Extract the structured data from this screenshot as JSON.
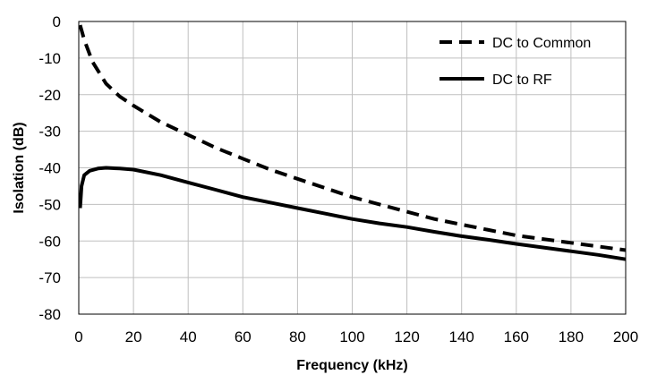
{
  "chart_data": {
    "type": "line",
    "title": "",
    "xlabel": "Frequency (kHz)",
    "ylabel": "Isolation (dB)",
    "xlim": [
      0,
      200
    ],
    "ylim": [
      -80,
      0
    ],
    "x_ticks": [
      0,
      20,
      40,
      60,
      80,
      100,
      120,
      140,
      160,
      180,
      200
    ],
    "y_ticks": [
      0,
      -10,
      -20,
      -30,
      -40,
      -50,
      -60,
      -70,
      -80
    ],
    "grid": true,
    "legend_position": "top-right",
    "series": [
      {
        "name": "DC to Common",
        "style": "dashed",
        "color": "#000000",
        "points": [
          [
            0.5,
            -1
          ],
          [
            2,
            -5
          ],
          [
            5,
            -11
          ],
          [
            10,
            -17
          ],
          [
            15,
            -20.5
          ],
          [
            20,
            -23
          ],
          [
            30,
            -27.5
          ],
          [
            40,
            -31
          ],
          [
            50,
            -34.5
          ],
          [
            60,
            -37.5
          ],
          [
            70,
            -40.5
          ],
          [
            80,
            -43
          ],
          [
            90,
            -45.5
          ],
          [
            100,
            -48
          ],
          [
            110,
            -50
          ],
          [
            120,
            -52
          ],
          [
            130,
            -54
          ],
          [
            140,
            -55.5
          ],
          [
            150,
            -57
          ],
          [
            160,
            -58.5
          ],
          [
            170,
            -59.5
          ],
          [
            180,
            -60.5
          ],
          [
            190,
            -61.5
          ],
          [
            200,
            -62.5
          ]
        ]
      },
      {
        "name": "DC to RF",
        "style": "solid",
        "color": "#000000",
        "points": [
          [
            0.5,
            -51
          ],
          [
            1,
            -45
          ],
          [
            2,
            -42
          ],
          [
            4,
            -40.8
          ],
          [
            7,
            -40.2
          ],
          [
            10,
            -40
          ],
          [
            15,
            -40.2
          ],
          [
            20,
            -40.5
          ],
          [
            30,
            -42
          ],
          [
            40,
            -44
          ],
          [
            50,
            -46
          ],
          [
            60,
            -48
          ],
          [
            70,
            -49.5
          ],
          [
            80,
            -51
          ],
          [
            90,
            -52.5
          ],
          [
            100,
            -54
          ],
          [
            110,
            -55.2
          ],
          [
            120,
            -56.2
          ],
          [
            130,
            -57.5
          ],
          [
            140,
            -58.7
          ],
          [
            150,
            -59.7
          ],
          [
            160,
            -60.8
          ],
          [
            170,
            -61.8
          ],
          [
            180,
            -62.8
          ],
          [
            190,
            -63.8
          ],
          [
            200,
            -65
          ]
        ]
      }
    ]
  }
}
